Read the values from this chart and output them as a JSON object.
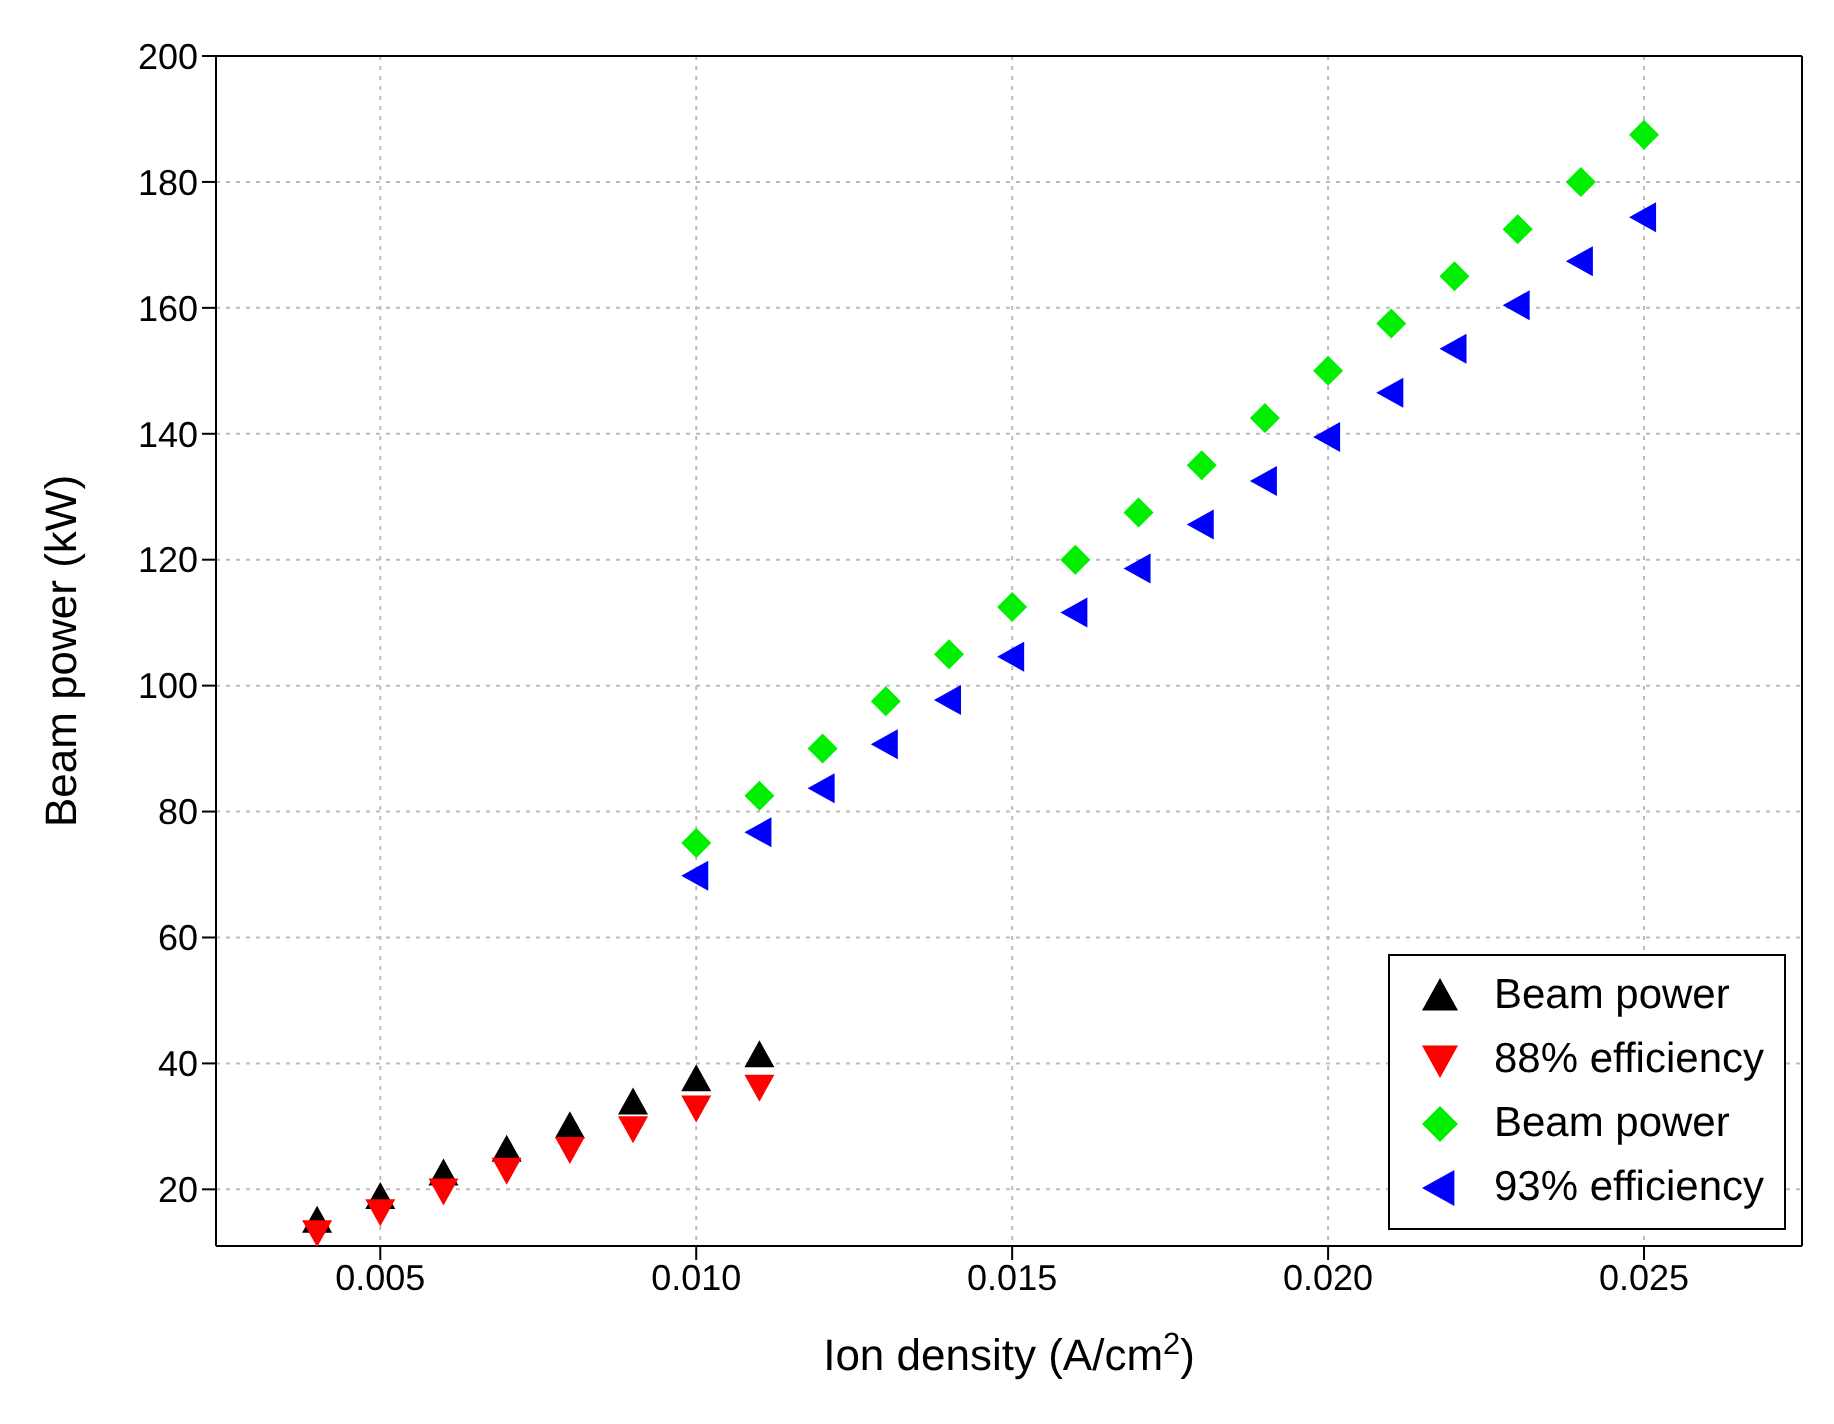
{
  "chart_data": {
    "type": "scatter",
    "xlabel": "Ion density (A/cm$^{2}$)",
    "ylabel": "Beam power (kW)",
    "xlim": [
      0.0024,
      0.0275
    ],
    "xticks": [
      0.005,
      {
        "value": 0.01,
        "label": "0.010"
      },
      0.015,
      {
        "value": 0.02,
        "label": "0.020"
      },
      0.025
    ],
    "ylim": [
      11,
      200
    ],
    "yticks": [
      20,
      40,
      60,
      80,
      100,
      120,
      140,
      160,
      180,
      200
    ],
    "grid": true,
    "legend": "bottom right",
    "series": [
      {
        "name": "Beam power",
        "color": "#000000",
        "marker": "triangle",
        "x": [
          0.004,
          0.005,
          0.006,
          0.007,
          0.008,
          0.009,
          0.01,
          0.011
        ],
        "values": [
          15,
          18.8,
          22.5,
          26.3,
          30,
          33.8,
          37.5,
          41.3
        ]
      },
      {
        "name": "88% efficiency",
        "color": "#ff0000",
        "marker": "triangle-down",
        "x": [
          0.004,
          0.005,
          0.006,
          0.007,
          0.008,
          0.009,
          0.01,
          0.011
        ],
        "values": [
          13.2,
          16.5,
          19.8,
          23.1,
          26.4,
          29.7,
          33,
          36.3
        ]
      },
      {
        "name": "Beam power",
        "color": "#00ee00",
        "marker": "diamond",
        "x": [
          0.01,
          0.011,
          0.012,
          0.013,
          0.014,
          0.015,
          0.016,
          0.017,
          0.018,
          0.019,
          0.02,
          0.021,
          0.022,
          0.023,
          0.024,
          0.025
        ],
        "values": [
          75,
          82.5,
          90,
          97.5,
          105,
          112.5,
          120,
          127.5,
          135,
          142.5,
          150,
          157.5,
          165,
          172.5,
          180,
          187.5
        ]
      },
      {
        "name": "93% efficiency",
        "color": "#0000ff",
        "marker": "triangle-left",
        "x": [
          0.01,
          0.011,
          0.012,
          0.013,
          0.014,
          0.015,
          0.016,
          0.017,
          0.018,
          0.019,
          0.02,
          0.021,
          0.022,
          0.023,
          0.024,
          0.025
        ],
        "values": [
          69.8,
          76.7,
          83.7,
          90.7,
          97.7,
          104.6,
          111.6,
          118.6,
          125.6,
          132.5,
          139.5,
          146.5,
          153.5,
          160.4,
          167.4,
          174.4
        ]
      }
    ]
  }
}
